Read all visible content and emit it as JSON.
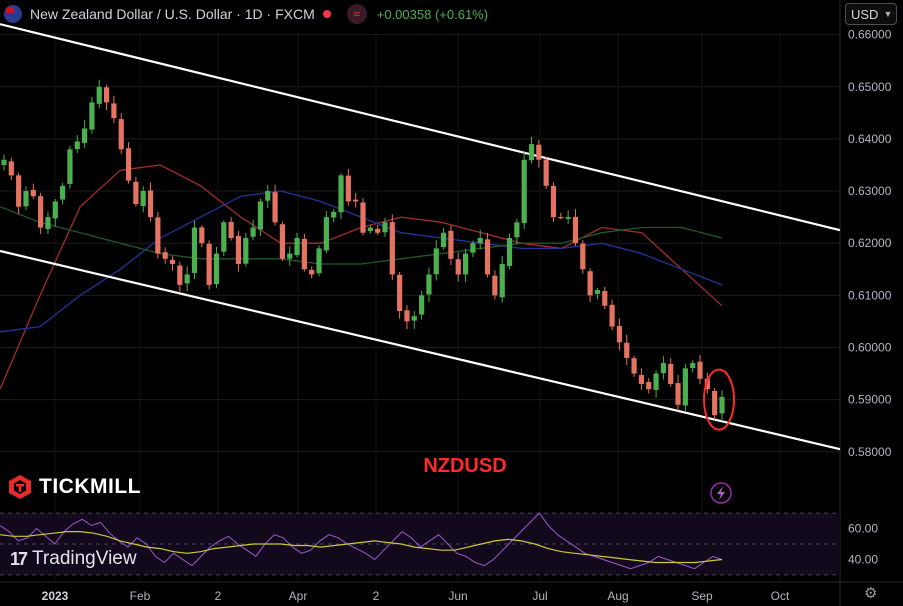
{
  "header": {
    "title": "New Zealand Dollar / U.S. Dollar · 1D · FXCM",
    "change": "+0.00358 (+0.61%)",
    "currency_button": "USD"
  },
  "annotation_label": "NZDUSD",
  "branding": {
    "broker_logo": "TICKMILL",
    "platform_logo": "TradingView"
  },
  "colors": {
    "up": "#4caf50",
    "down": "#e57361",
    "trendline": "#ffffff",
    "ma_red": "#a32d2d",
    "ma_blue": "#23349a",
    "ma_green": "#1e5a2a",
    "rsi_line": "#9b59d0",
    "rsi_signal": "#c9c935",
    "highlight_ellipse": "#ff2a2a"
  },
  "icons": [
    "flag-icon",
    "indicator-icon",
    "lightning-icon",
    "settings-icon",
    "chevron-down-icon"
  ],
  "chart_data": {
    "type": "candlestick",
    "price_axis": {
      "ticks": [
        "0.66000",
        "0.65000",
        "0.64000",
        "0.63000",
        "0.62000",
        "0.61000",
        "0.60000",
        "0.59000",
        "0.58000"
      ],
      "range": [
        0.5765,
        0.6605
      ]
    },
    "time_axis": {
      "ticks": [
        "2023",
        "Feb",
        "2",
        "Apr",
        "2",
        "Jun",
        "Jul",
        "Aug",
        "Sep",
        "Oct"
      ]
    },
    "closes": [
      0.636,
      0.633,
      0.627,
      0.63,
      0.629,
      0.623,
      0.625,
      0.628,
      0.631,
      0.638,
      0.6395,
      0.642,
      0.647,
      0.65,
      0.647,
      0.644,
      0.638,
      0.632,
      0.6275,
      0.63,
      0.625,
      0.618,
      0.617,
      0.616,
      0.612,
      0.614,
      0.623,
      0.62,
      0.612,
      0.618,
      0.624,
      0.621,
      0.616,
      0.621,
      0.623,
      0.628,
      0.63,
      0.624,
      0.617,
      0.618,
      0.621,
      0.615,
      0.614,
      0.619,
      0.625,
      0.626,
      0.633,
      0.628,
      0.628,
      0.622,
      0.623,
      0.622,
      0.624,
      0.614,
      0.607,
      0.605,
      0.606,
      0.61,
      0.614,
      0.619,
      0.622,
      0.617,
      0.614,
      0.618,
      0.62,
      0.621,
      0.614,
      0.61,
      0.616,
      0.621,
      0.624,
      0.636,
      0.639,
      0.636,
      0.631,
      0.625,
      0.625,
      0.625,
      0.62,
      0.615,
      0.61,
      0.611,
      0.608,
      0.604,
      0.601,
      0.598,
      0.595,
      0.593,
      0.592,
      0.595,
      0.597,
      0.593,
      0.589,
      0.596,
      0.597,
      0.594,
      0.592,
      0.587,
      0.5905
    ],
    "moving_averages": [
      {
        "color": "red",
        "values": [
          0.592,
          0.61,
          0.627,
          0.634,
          0.635,
          0.631,
          0.625,
          0.62,
          0.62,
          0.623,
          0.625,
          0.624,
          0.622,
          0.62,
          0.619,
          0.623,
          0.622,
          0.615,
          0.608
        ]
      },
      {
        "color": "blue",
        "values": [
          0.603,
          0.604,
          0.61,
          0.615,
          0.621,
          0.625,
          0.629,
          0.63,
          0.628,
          0.625,
          0.622,
          0.621,
          0.62,
          0.619,
          0.619,
          0.62,
          0.618,
          0.615,
          0.612
        ]
      },
      {
        "color": "green",
        "values": [
          0.627,
          0.624,
          0.622,
          0.62,
          0.618,
          0.617,
          0.617,
          0.617,
          0.616,
          0.616,
          0.617,
          0.618,
          0.619,
          0.62,
          0.62,
          0.622,
          0.623,
          0.623,
          0.621
        ]
      }
    ],
    "trend_channel": {
      "upper": [
        [
          0,
          0.662
        ],
        [
          1,
          0.6225
        ]
      ],
      "lower": [
        [
          0,
          0.6185
        ],
        [
          1,
          0.5805
        ]
      ]
    },
    "rsi": {
      "ticks": [
        "60.00",
        "40.00"
      ],
      "range": [
        28,
        72
      ],
      "values": [
        62,
        58,
        52,
        54,
        60,
        55,
        50,
        58,
        63,
        66,
        62,
        64,
        57,
        52,
        48,
        54,
        50,
        42,
        38,
        44,
        40,
        36,
        42,
        48,
        52,
        55,
        50,
        46,
        42,
        50,
        56,
        54,
        48,
        44,
        46,
        52,
        56,
        54,
        50,
        47,
        44,
        40,
        46,
        52,
        58,
        54,
        48,
        52,
        56,
        50,
        44,
        42,
        38,
        36,
        40,
        46,
        52,
        58,
        64,
        70,
        62,
        56,
        52,
        48,
        44,
        42,
        40,
        38,
        36,
        34,
        36,
        38,
        42,
        40,
        38,
        36,
        34,
        38,
        42,
        40
      ],
      "signal": [
        56,
        55,
        55,
        56,
        57,
        58,
        58,
        57,
        55,
        52,
        50,
        48,
        47,
        45,
        44,
        45,
        47,
        48,
        49,
        50,
        50,
        50,
        49,
        49,
        48,
        49,
        50,
        51,
        52,
        51,
        50,
        48,
        47,
        46,
        46,
        48,
        50,
        52,
        53,
        52,
        50,
        47,
        45,
        44,
        43,
        42,
        41,
        40,
        39,
        38,
        38,
        38,
        38,
        39,
        40
      ]
    }
  }
}
